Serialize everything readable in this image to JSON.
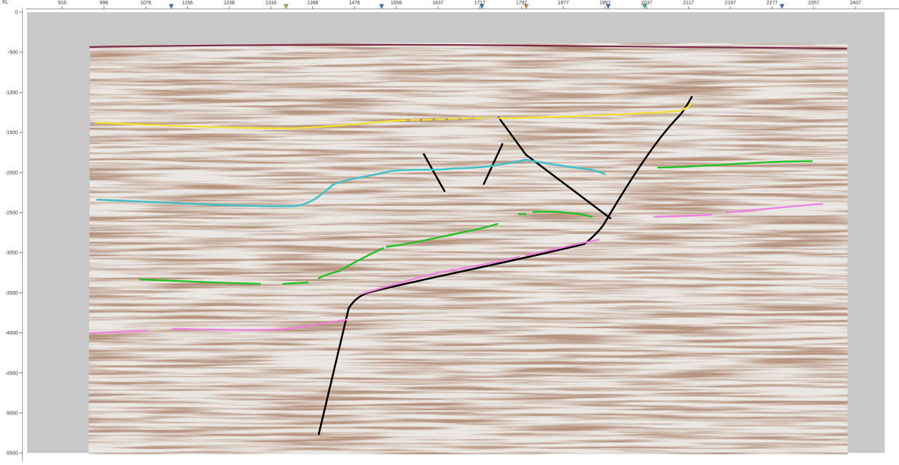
{
  "axes": {
    "corner_label": "XL",
    "xl_ticks": [
      "916",
      "996",
      "1076",
      "1156",
      "1236",
      "1316",
      "1396",
      "1476",
      "1556",
      "1637",
      "1717",
      "1797",
      "1877",
      "1957",
      "2037",
      "2117",
      "2197",
      "2277",
      "2357",
      "2437"
    ],
    "depth_ticks": [
      "0",
      "-500",
      "-1000",
      "-1500",
      "-2000",
      "-2500",
      "-3000",
      "-3500",
      "-4000",
      "-4500",
      "-5000",
      "-5500"
    ],
    "xl_start": 916,
    "xl_step": 80,
    "depth_step": -500
  },
  "markers": [
    {
      "name": "well-marker-1",
      "xl": 1125,
      "color": "#3a78c9"
    },
    {
      "name": "well-marker-2",
      "xl": 1345,
      "color": "#a6b830"
    },
    {
      "name": "well-marker-3",
      "xl": 1528,
      "color": "#3a78c9"
    },
    {
      "name": "well-marker-4",
      "xl": 1720,
      "color": "#3a78c9"
    },
    {
      "name": "well-marker-5",
      "xl": 1805,
      "color": "#e08a2a"
    },
    {
      "name": "well-marker-6",
      "xl": 1962,
      "color": "#3a78c9"
    },
    {
      "name": "well-marker-7",
      "xl": 2032,
      "color": "#2fb8a8"
    },
    {
      "name": "well-marker-8",
      "xl": 2295,
      "color": "#3a78c9"
    }
  ],
  "colors": {
    "background_panel": "#c8c8c8",
    "seabed": "#7a2a4a",
    "yellow_horizon": "#f0e030",
    "cyan_horizon": "#40c0c8",
    "green_horizon": "#20c020",
    "pink_horizon": "#f080e0",
    "fault": "#000000"
  }
}
